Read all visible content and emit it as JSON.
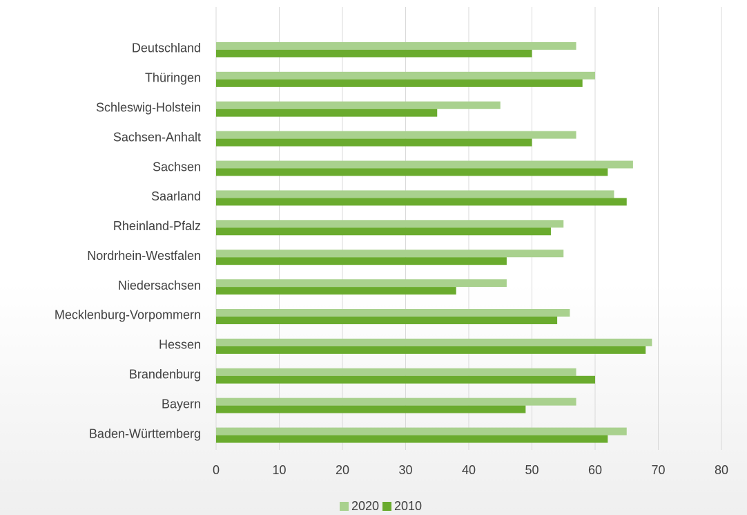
{
  "chart_data": {
    "type": "hbar",
    "categories": [
      "Deutschland",
      "Thüringen",
      "Schleswig-Holstein",
      "Sachsen-Anhalt",
      "Sachsen",
      "Saarland",
      "Rheinland-Pfalz",
      "Nordrhein-Westfalen",
      "Niedersachsen",
      "Mecklenburg-Vorpommern",
      "Hessen",
      "Brandenburg",
      "Bayern",
      "Baden-Württemberg"
    ],
    "series": [
      {
        "name": "2020",
        "color": "#a9d18e",
        "values": [
          57,
          60,
          45,
          57,
          66,
          63,
          55,
          55,
          46,
          56,
          69,
          57,
          57,
          65
        ]
      },
      {
        "name": "2010",
        "color": "#6aab2e",
        "values": [
          50,
          58,
          35,
          50,
          62,
          65,
          53,
          46,
          38,
          54,
          68,
          60,
          49,
          62
        ]
      }
    ],
    "xlim": [
      0,
      80
    ],
    "xticks": [
      0,
      10,
      20,
      30,
      40,
      50,
      60,
      70,
      80
    ],
    "grid": true,
    "legend": "bottom"
  }
}
